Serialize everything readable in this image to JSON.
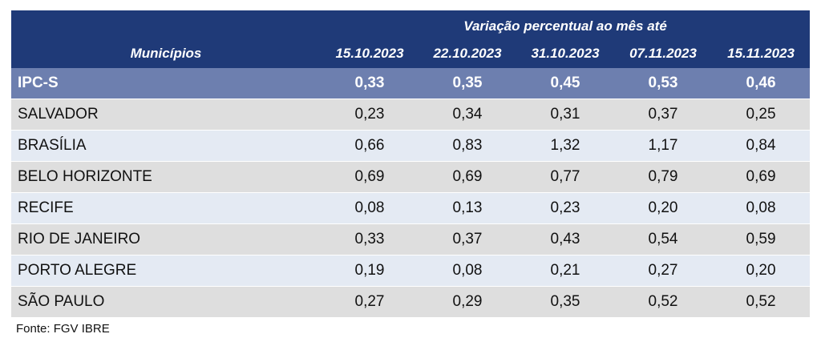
{
  "table": {
    "super_header": "Variação percentual ao mês até",
    "col_municipios": "Municípios",
    "dates": [
      "15.10.2023",
      "22.10.2023",
      "31.10.2023",
      "07.11.2023",
      "15.11.2023"
    ],
    "highlight": {
      "name": "IPC-S",
      "values": [
        "0,33",
        "0,35",
        "0,45",
        "0,53",
        "0,46"
      ]
    },
    "rows": [
      {
        "name": "SALVADOR",
        "values": [
          "0,23",
          "0,34",
          "0,31",
          "0,37",
          "0,25"
        ]
      },
      {
        "name": "BRASÍLIA",
        "values": [
          "0,66",
          "0,83",
          "1,32",
          "1,17",
          "0,84"
        ]
      },
      {
        "name": "BELO HORIZONTE",
        "values": [
          "0,69",
          "0,69",
          "0,77",
          "0,79",
          "0,69"
        ]
      },
      {
        "name": "RECIFE",
        "values": [
          "0,08",
          "0,13",
          "0,23",
          "0,20",
          "0,08"
        ]
      },
      {
        "name": "RIO DE JANEIRO",
        "values": [
          "0,33",
          "0,37",
          "0,43",
          "0,54",
          "0,59"
        ]
      },
      {
        "name": "PORTO ALEGRE",
        "values": [
          "0,19",
          "0,08",
          "0,21",
          "0,27",
          "0,20"
        ]
      },
      {
        "name": "SÃO PAULO",
        "values": [
          "0,27",
          "0,29",
          "0,35",
          "0,52",
          "0,52"
        ]
      }
    ]
  },
  "source": "Fonte: FGV IBRE",
  "colors": {
    "header_bg": "#1f3a78",
    "highlight_bg": "#6d7faf",
    "row_even": "#dedede",
    "row_odd": "#e4eaf3"
  }
}
